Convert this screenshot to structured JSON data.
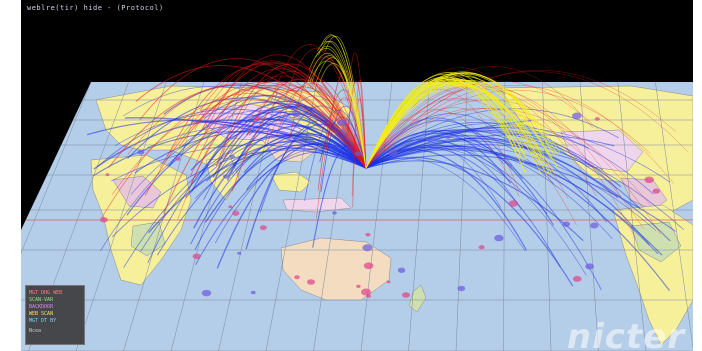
{
  "window": {
    "title": "weblre(tir) hide - (Protocol)"
  },
  "map": {
    "ocean_color": "#b4cde8",
    "land_colors": [
      "#f7f09a",
      "#efd6ec",
      "#cfe0b0",
      "#f3dcc0",
      "#e7c7d8"
    ],
    "arc_colors": {
      "blue": "#1a2fe6",
      "red": "#e61a1a",
      "yellow": "#f2ee1a"
    }
  },
  "legend": {
    "items": [
      {
        "label": "MGT DHG WEB",
        "color": "#ff7b7b"
      },
      {
        "label": "SCAN-VAR",
        "color": "#9be27e"
      },
      {
        "label": "BACKDOOR",
        "color": "#d98be6"
      },
      {
        "label": "WEB SCAN",
        "color": "#f0e36a"
      },
      {
        "label": "MGT DT BY",
        "color": "#7fd8e8"
      }
    ],
    "footer": "Ncea"
  },
  "watermark": {
    "text": "nicter"
  }
}
